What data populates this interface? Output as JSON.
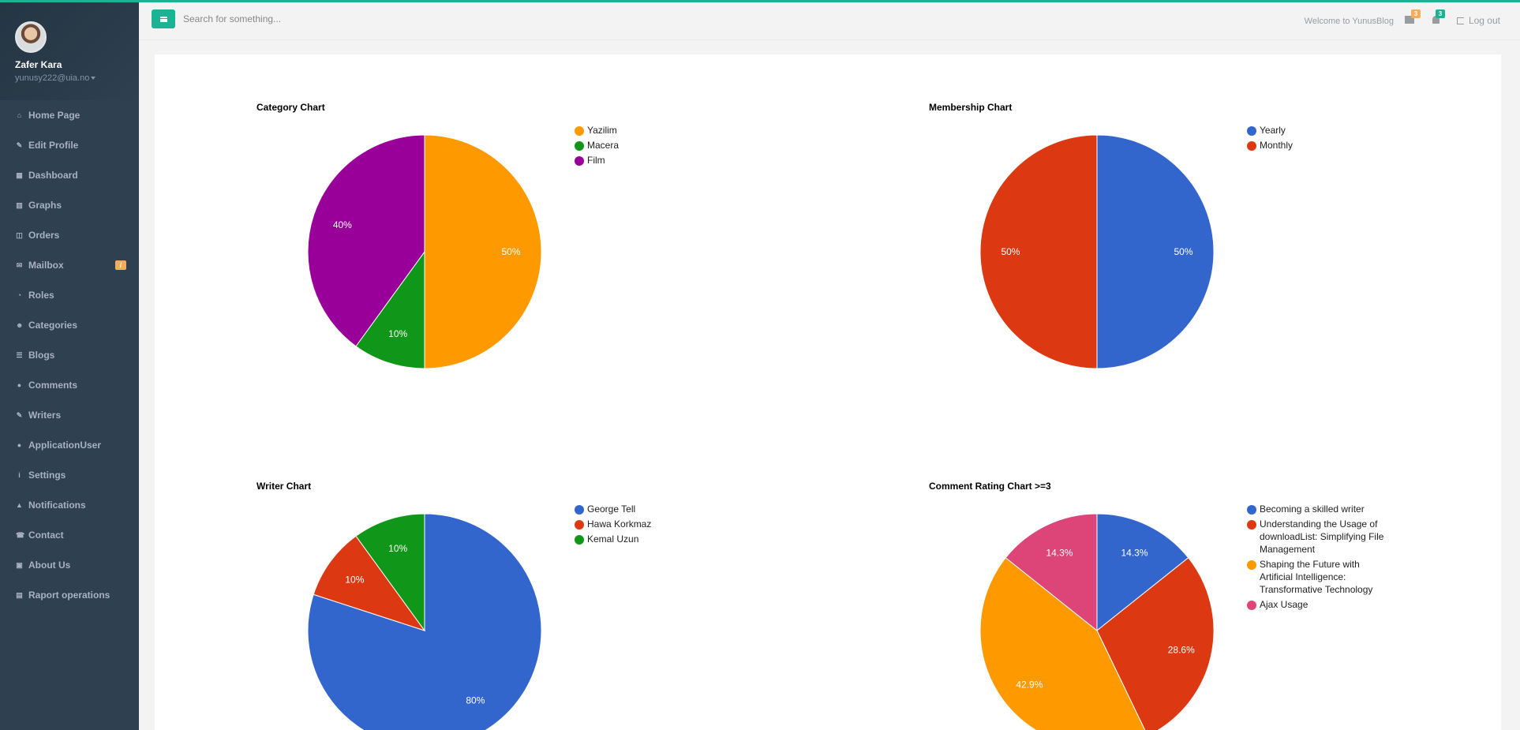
{
  "user": {
    "name": "Zafer Kara",
    "email": "yunusy222@uia.no"
  },
  "sidebar": {
    "items": [
      {
        "label": "Home Page",
        "icon": "home-icon"
      },
      {
        "label": "Edit Profile",
        "icon": "edit-icon"
      },
      {
        "label": "Dashboard",
        "icon": "dashboard-icon"
      },
      {
        "label": "Graphs",
        "icon": "bar-chart-icon"
      },
      {
        "label": "Orders",
        "icon": "cart-icon"
      },
      {
        "label": "Mailbox",
        "icon": "envelope-icon",
        "badge": "/"
      },
      {
        "label": "Roles",
        "icon": "pie-icon"
      },
      {
        "label": "Categories",
        "icon": "users-icon"
      },
      {
        "label": "Blogs",
        "icon": "list-icon"
      },
      {
        "label": "Comments",
        "icon": "comment-icon"
      },
      {
        "label": "Writers",
        "icon": "pencil-icon"
      },
      {
        "label": "ApplicationUser",
        "icon": "user-icon"
      },
      {
        "label": "Settings",
        "icon": "info-icon"
      },
      {
        "label": "Notifications",
        "icon": "bell-icon"
      },
      {
        "label": "Contact",
        "icon": "phone-icon"
      },
      {
        "label": "About Us",
        "icon": "address-book-icon"
      },
      {
        "label": "Raport operations",
        "icon": "book-icon"
      }
    ]
  },
  "topbar": {
    "search_placeholder": "Search for something...",
    "welcome": "Welcome to YunusBlog",
    "mail_count": "3",
    "notification_count": "3",
    "logout_label": "Log out"
  },
  "colors": {
    "accent": "#1ab394",
    "sidebar": "#2f4050",
    "warning": "#f8ac59"
  },
  "chart_data": [
    {
      "type": "pie",
      "title": "Category Chart",
      "categories": [
        "Yazilim",
        "Macera",
        "Film"
      ],
      "values": [
        50,
        10,
        40
      ],
      "labels": [
        "50%",
        "10%",
        "40%"
      ],
      "colors": [
        "#ff9900",
        "#109618",
        "#990099"
      ],
      "legend": "right"
    },
    {
      "type": "pie",
      "title": "Membership Chart",
      "categories": [
        "Yearly",
        "Monthly"
      ],
      "values": [
        50,
        50
      ],
      "labels": [
        "50%",
        "50%"
      ],
      "colors": [
        "#3366cc",
        "#dc3912"
      ],
      "legend": "right"
    },
    {
      "type": "pie",
      "title": "Writer Chart",
      "categories": [
        "George Tell",
        "Hawa Korkmaz",
        "Kemal Uzun"
      ],
      "values": [
        80,
        10,
        10
      ],
      "labels": [
        "80%",
        "10%",
        "10%"
      ],
      "colors": [
        "#3366cc",
        "#dc3912",
        "#109618"
      ],
      "legend": "right"
    },
    {
      "type": "pie",
      "title": "Comment Rating Chart >=3",
      "categories": [
        "Becoming a skilled writer",
        "Understanding the Usage of downloadList: Simplifying File Management",
        "Shaping the Future with Artificial Intelligence: Transformative Technology",
        "Ajax Usage"
      ],
      "values": [
        14.3,
        28.6,
        42.9,
        14.3
      ],
      "labels": [
        "14.3%",
        "28.6%",
        "42.9%",
        "14.3%"
      ],
      "colors": [
        "#3366cc",
        "#dc3912",
        "#ff9900",
        "#dd4477"
      ],
      "legend": "right"
    }
  ]
}
